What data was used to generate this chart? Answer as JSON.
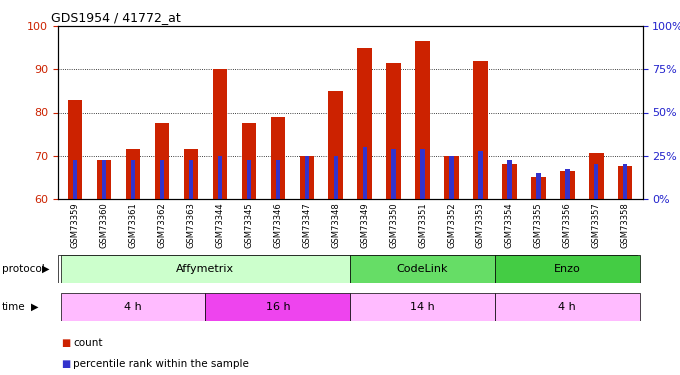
{
  "title": "GDS1954 / 41772_at",
  "samples": [
    "GSM73359",
    "GSM73360",
    "GSM73361",
    "GSM73362",
    "GSM73363",
    "GSM73344",
    "GSM73345",
    "GSM73346",
    "GSM73347",
    "GSM73348",
    "GSM73349",
    "GSM73350",
    "GSM73351",
    "GSM73352",
    "GSM73353",
    "GSM73354",
    "GSM73355",
    "GSM73356",
    "GSM73357",
    "GSM73358"
  ],
  "count_values": [
    83,
    69,
    71.5,
    77.5,
    71.5,
    90,
    77.5,
    79,
    70,
    85,
    95,
    91.5,
    96.5,
    70,
    92,
    68,
    65,
    66.5,
    70.5,
    67.5
  ],
  "percentile_values": [
    69,
    69,
    69,
    69,
    69,
    70,
    69,
    69,
    70,
    70,
    72,
    71.5,
    71.5,
    70,
    71,
    69,
    66,
    67,
    68,
    68
  ],
  "ymin": 60,
  "ymax": 100,
  "yticks": [
    60,
    70,
    80,
    90,
    100
  ],
  "right_yticklabels": [
    "0%",
    "25%",
    "50%",
    "75%",
    "100%"
  ],
  "bar_color": "#cc2200",
  "percentile_color": "#3333cc",
  "protocol_groups": [
    {
      "label": "Affymetrix",
      "start": 0,
      "end": 9,
      "color": "#ccffcc"
    },
    {
      "label": "CodeLink",
      "start": 10,
      "end": 14,
      "color": "#66dd66"
    },
    {
      "label": "Enzo",
      "start": 15,
      "end": 19,
      "color": "#44cc44"
    }
  ],
  "time_groups": [
    {
      "label": "4 h",
      "start": 0,
      "end": 4,
      "color": "#ffbbff"
    },
    {
      "label": "16 h",
      "start": 5,
      "end": 9,
      "color": "#ee44ee"
    },
    {
      "label": "14 h",
      "start": 10,
      "end": 14,
      "color": "#ffbbff"
    },
    {
      "label": "4 h",
      "start": 15,
      "end": 19,
      "color": "#ffbbff"
    }
  ],
  "legend_count_color": "#cc2200",
  "legend_pct_color": "#3333cc",
  "xlabel_count": "count",
  "xlabel_pct": "percentile rank within the sample",
  "tick_color_left": "#cc2200",
  "tick_color_right": "#2222cc"
}
